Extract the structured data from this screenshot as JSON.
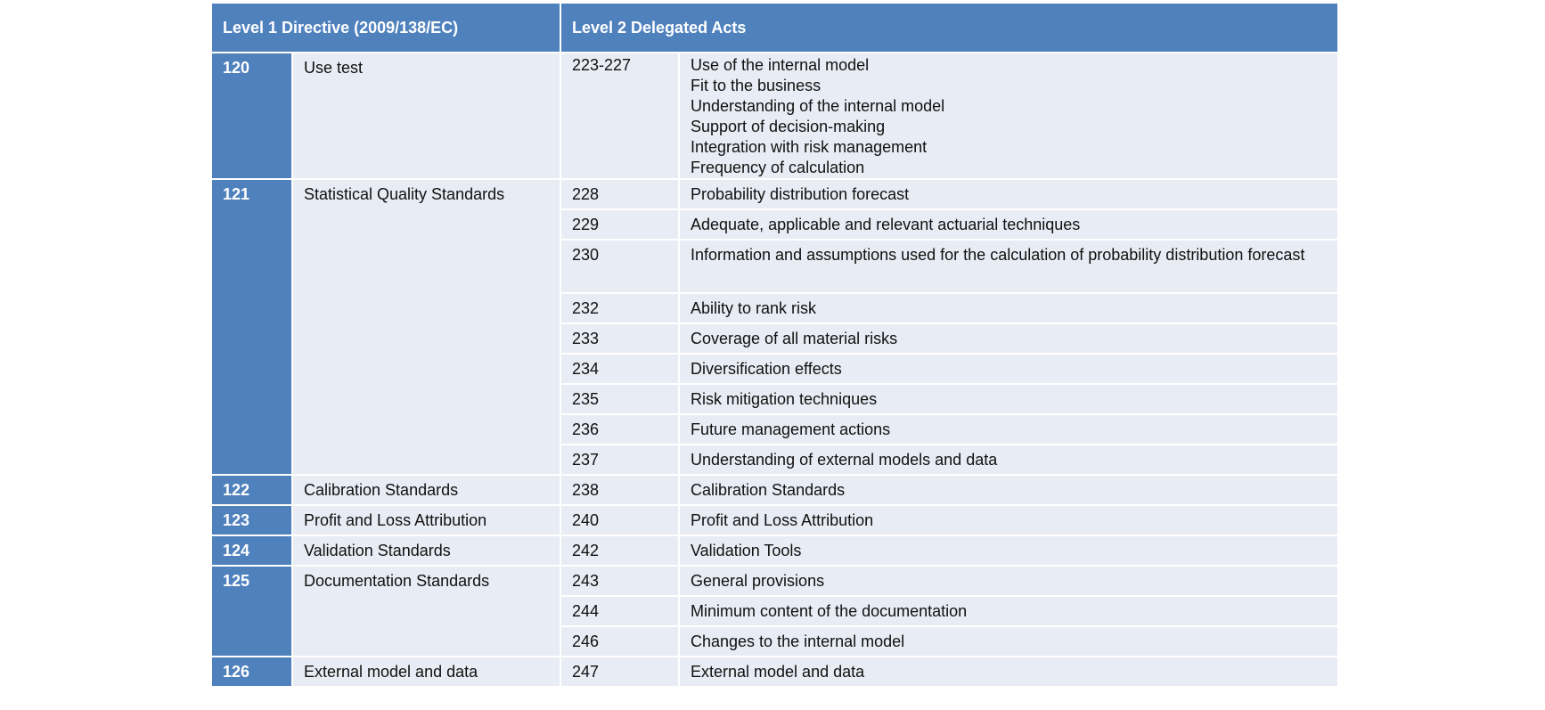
{
  "header": {
    "level1": "Level 1 Directive (2009/138/EC)",
    "level2": "Level 2 Delegated Acts"
  },
  "rows": [
    {
      "number": "120",
      "title": "Use test",
      "acts": [
        {
          "ref": "223-227",
          "items": [
            "Use of the internal model",
            "Fit to the business",
            "Understanding of the internal model",
            "Support of decision-making",
            "Integration with risk management",
            "Frequency of calculation"
          ]
        }
      ]
    },
    {
      "number": "121",
      "title": "Statistical Quality Standards",
      "acts": [
        {
          "ref": "228",
          "items": [
            "Probability distribution forecast"
          ]
        },
        {
          "ref": "229",
          "items": [
            "Adequate, applicable and relevant actuarial techniques"
          ]
        },
        {
          "ref": "230",
          "items": [
            "Information and assumptions used for the calculation of probability distribution forecast"
          ]
        },
        {
          "ref": "232",
          "items": [
            "Ability to rank risk"
          ]
        },
        {
          "ref": "233",
          "items": [
            "Coverage of all material risks"
          ]
        },
        {
          "ref": "234",
          "items": [
            "Diversification effects"
          ]
        },
        {
          "ref": "235",
          "items": [
            "Risk mitigation techniques"
          ]
        },
        {
          "ref": "236",
          "items": [
            "Future management actions"
          ]
        },
        {
          "ref": "237",
          "items": [
            "Understanding of external models and data"
          ]
        }
      ]
    },
    {
      "number": "122",
      "title": "Calibration Standards",
      "acts": [
        {
          "ref": "238",
          "items": [
            "Calibration Standards"
          ]
        }
      ]
    },
    {
      "number": "123",
      "title": "Profit and Loss Attribution",
      "acts": [
        {
          "ref": "240",
          "items": [
            "Profit and Loss Attribution"
          ]
        }
      ]
    },
    {
      "number": "124",
      "title": "Validation Standards",
      "acts": [
        {
          "ref": "242",
          "items": [
            "Validation Tools"
          ]
        }
      ]
    },
    {
      "number": "125",
      "title": "Documentation Standards",
      "acts": [
        {
          "ref": "243",
          "items": [
            "General provisions"
          ]
        },
        {
          "ref": "244",
          "items": [
            "Minimum content of the documentation"
          ]
        },
        {
          "ref": "246",
          "items": [
            "Changes to the internal model"
          ]
        }
      ]
    },
    {
      "number": "126",
      "title": "External model and data",
      "acts": [
        {
          "ref": "247",
          "items": [
            "External model and data"
          ]
        }
      ]
    }
  ]
}
